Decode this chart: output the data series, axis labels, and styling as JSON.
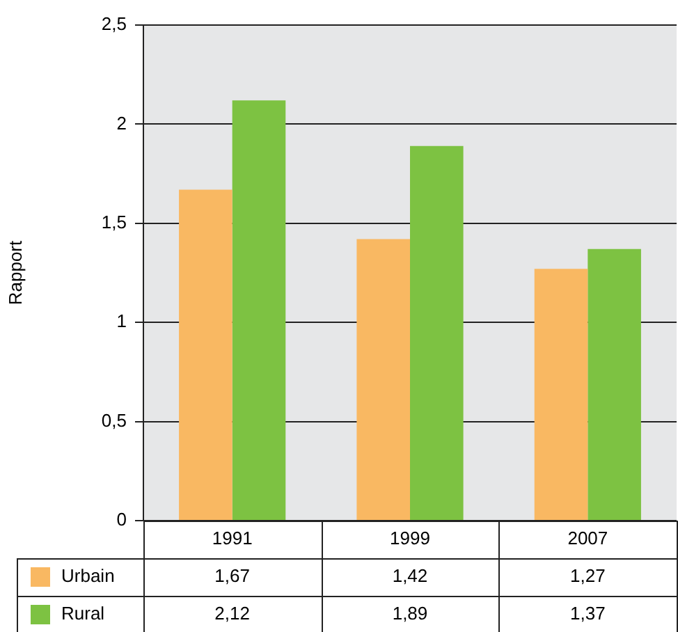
{
  "chart_data": {
    "type": "bar",
    "ylabel": "Rapport",
    "categories": [
      "1991",
      "1999",
      "2007"
    ],
    "series": [
      {
        "name": "Urbain",
        "color": "#f9b862",
        "values": [
          1.67,
          1.42,
          1.27
        ],
        "value_labels": [
          "1,67",
          "1,42",
          "1,27"
        ]
      },
      {
        "name": "Rural",
        "color": "#7dc242",
        "values": [
          2.12,
          1.89,
          1.37
        ],
        "value_labels": [
          "2,12",
          "1,89",
          "1,37"
        ]
      }
    ],
    "ylim": [
      0,
      2.5
    ],
    "yticks": [
      0,
      {
        "value": 0.5,
        "label": "0,5"
      },
      1,
      {
        "value": 1.5,
        "label": "1,5"
      },
      2,
      {
        "value": 2.5,
        "label": "2,5"
      }
    ],
    "grid": "y",
    "legend": "bottom"
  }
}
